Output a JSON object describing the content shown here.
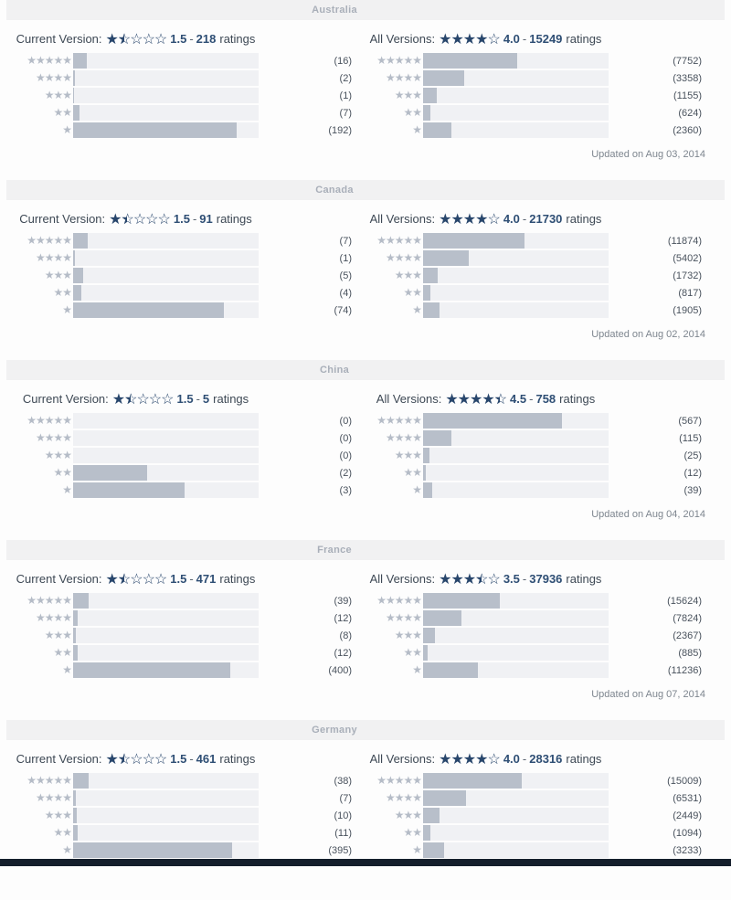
{
  "labels": {
    "ratings_suffix": "ratings",
    "separator": "-",
    "row_star_counts": [
      5,
      4,
      3,
      2,
      1
    ]
  },
  "colors": {
    "page_bg": "#fdfdfd",
    "header_bg": "#f1f1f2",
    "header_text": "#a9afb9",
    "star_navy": "#28466c",
    "value_navy": "#2e4e74",
    "title_text": "#3d4854",
    "bar_fill": "#b8bfca",
    "bar_track": "#f0f1f4",
    "row_star_gray": "#b5bcc7",
    "count_text": "#49525d",
    "updated_text": "#7e868f",
    "bottom_bar": "#141e2b"
  },
  "chart_data": [
    {
      "type": "bar",
      "country": "Australia",
      "updated": "Updated on Aug 03, 2014",
      "categories": [
        "5 stars",
        "4 stars",
        "3 stars",
        "2 stars",
        "1 star"
      ],
      "bar_scale": "fraction_of_total_ratings",
      "charts": [
        {
          "title": "Current Version:",
          "stars": 1.5,
          "rating": "1.5",
          "total": "218",
          "values": [
            16,
            2,
            1,
            7,
            192
          ]
        },
        {
          "title": "All Versions:",
          "stars": 4,
          "rating": "4.0",
          "total": "15249",
          "values": [
            7752,
            3358,
            1155,
            624,
            2360
          ]
        }
      ]
    },
    {
      "type": "bar",
      "country": "Canada",
      "updated": "Updated on Aug 02, 2014",
      "categories": [
        "5 stars",
        "4 stars",
        "3 stars",
        "2 stars",
        "1 star"
      ],
      "bar_scale": "fraction_of_total_ratings",
      "charts": [
        {
          "title": "Current Version:",
          "stars": 1.5,
          "rating": "1.5",
          "total": "91",
          "values": [
            7,
            1,
            5,
            4,
            74
          ]
        },
        {
          "title": "All Versions:",
          "stars": 4,
          "rating": "4.0",
          "total": "21730",
          "values": [
            11874,
            5402,
            1732,
            817,
            1905
          ]
        }
      ]
    },
    {
      "type": "bar",
      "country": "China",
      "updated": "Updated on Aug 04, 2014",
      "categories": [
        "5 stars",
        "4 stars",
        "3 stars",
        "2 stars",
        "1 star"
      ],
      "bar_scale": "fraction_of_total_ratings",
      "charts": [
        {
          "title": "Current Version:",
          "stars": 1.5,
          "rating": "1.5",
          "total": "5",
          "values": [
            0,
            0,
            0,
            2,
            3
          ]
        },
        {
          "title": "All Versions:",
          "stars": 4.5,
          "rating": "4.5",
          "total": "758",
          "values": [
            567,
            115,
            25,
            12,
            39
          ]
        }
      ]
    },
    {
      "type": "bar",
      "country": "France",
      "updated": "Updated on Aug 07, 2014",
      "categories": [
        "5 stars",
        "4 stars",
        "3 stars",
        "2 stars",
        "1 star"
      ],
      "bar_scale": "fraction_of_total_ratings",
      "charts": [
        {
          "title": "Current Version:",
          "stars": 1.5,
          "rating": "1.5",
          "total": "471",
          "values": [
            39,
            12,
            8,
            12,
            400
          ]
        },
        {
          "title": "All Versions:",
          "stars": 3.5,
          "rating": "3.5",
          "total": "37936",
          "values": [
            15624,
            7824,
            2367,
            885,
            11236
          ]
        }
      ]
    },
    {
      "type": "bar",
      "country": "Germany",
      "categories": [
        "5 stars",
        "4 stars",
        "3 stars",
        "2 stars",
        "1 star"
      ],
      "bar_scale": "fraction_of_total_ratings",
      "charts": [
        {
          "title": "Current Version:",
          "stars": 1.5,
          "rating": "1.5",
          "total": "461",
          "values": [
            38,
            7,
            10,
            11,
            395
          ]
        },
        {
          "title": "All Versions:",
          "stars": 4,
          "rating": "4.0",
          "total": "28316",
          "values": [
            15009,
            6531,
            2449,
            1094,
            3233
          ]
        }
      ]
    }
  ]
}
